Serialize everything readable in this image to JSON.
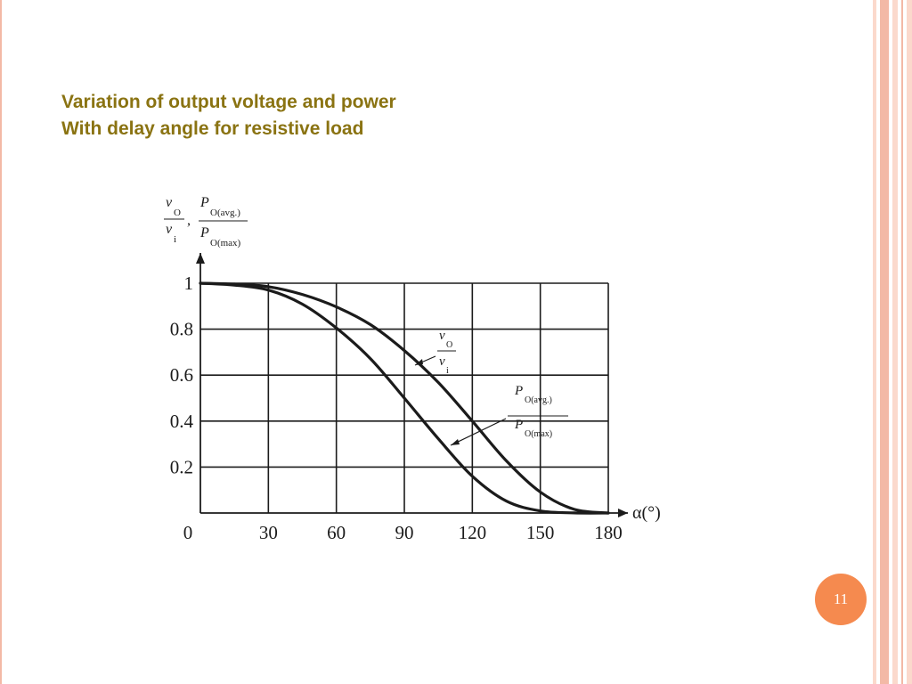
{
  "slide": {
    "title_line1": "Variation of output voltage and power",
    "title_line2": "With delay angle for resistive load",
    "page_number": "11"
  },
  "colors": {
    "title": "#8a7312",
    "badge": "#f58a4f",
    "stripe_light": "#fbd9cc",
    "stripe_dark": "#f3b9a6",
    "ink": "#1b1b1b"
  },
  "chart_data": {
    "type": "line",
    "x_axis_label": "α(°)",
    "y_axis_label": {
      "v_num": "v",
      "v_num_sub": "O",
      "v_den": "v",
      "v_den_sub": "i",
      "separator": ",",
      "p_num": "P",
      "p_num_sub": "O(avg.)",
      "p_den": "P",
      "p_den_sub": "O(max)"
    },
    "x_ticks": [
      "0",
      "30",
      "60",
      "90",
      "120",
      "150",
      "180"
    ],
    "y_ticks": [
      "0.2",
      "0.4",
      "0.6",
      "0.8",
      "1"
    ],
    "xlim": [
      0,
      180
    ],
    "ylim": [
      0,
      1
    ],
    "grid": true,
    "series": [
      {
        "name": "vO/vi",
        "label": {
          "num": "v",
          "num_sub": "O",
          "den": "v",
          "den_sub": "i"
        },
        "x": [
          0,
          15,
          30,
          45,
          60,
          75,
          90,
          105,
          120,
          135,
          150,
          165,
          180
        ],
        "values": [
          1.0,
          0.996,
          0.985,
          0.951,
          0.897,
          0.82,
          0.707,
          0.568,
          0.4,
          0.227,
          0.091,
          0.016,
          0.0
        ]
      },
      {
        "name": "PO(avg.)/PO(max)",
        "label": {
          "num": "P",
          "num_sub": "O(avg.)",
          "den": "P",
          "den_sub": "O(max)"
        },
        "x": [
          0,
          15,
          30,
          45,
          60,
          75,
          90,
          105,
          120,
          135,
          150,
          165,
          180
        ],
        "values": [
          1.0,
          0.992,
          0.97,
          0.909,
          0.805,
          0.672,
          0.5,
          0.323,
          0.16,
          0.052,
          0.009,
          0.0003,
          0.0
        ]
      }
    ]
  }
}
